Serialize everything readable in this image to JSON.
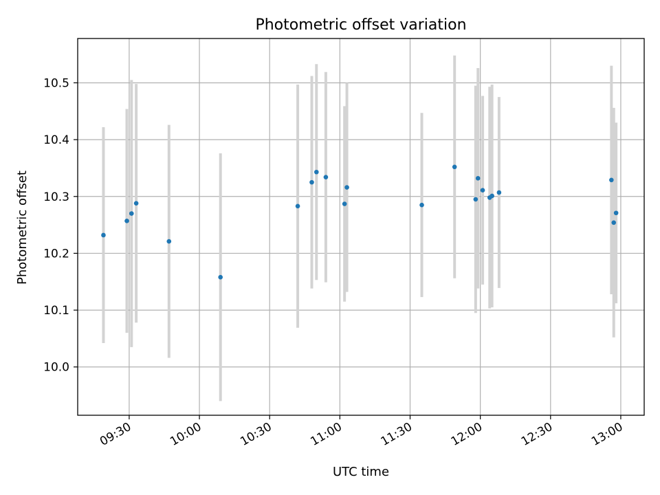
{
  "chart_data": {
    "type": "scatter",
    "title": "Photometric offset variation",
    "xlabel": "UTC time",
    "ylabel": "Photometric offset",
    "x_unit": "time of day (HH:MM)",
    "xlim": [
      "09:08",
      "13:10"
    ],
    "ylim": [
      9.915,
      10.578
    ],
    "x_ticks": [
      "09:30",
      "10:00",
      "10:30",
      "11:00",
      "11:30",
      "12:00",
      "12:30",
      "13:00"
    ],
    "y_ticks": [
      10.0,
      10.1,
      10.2,
      10.3,
      10.4,
      10.5
    ],
    "y_tick_labels": [
      "10.0",
      "10.1",
      "10.2",
      "10.3",
      "10.4",
      "10.5"
    ],
    "grid": true,
    "marker_color": "#1f77b4",
    "errorbar_color": "#d3d3d3",
    "points": [
      {
        "x": "09:19",
        "y": 10.232,
        "err": 0.19
      },
      {
        "x": "09:29",
        "y": 10.257,
        "err": 0.197
      },
      {
        "x": "09:31",
        "y": 10.27,
        "err": 0.235
      },
      {
        "x": "09:33",
        "y": 10.288,
        "err": 0.21
      },
      {
        "x": "09:47",
        "y": 10.221,
        "err": 0.205
      },
      {
        "x": "10:09",
        "y": 10.158,
        "err": 0.218
      },
      {
        "x": "10:42",
        "y": 10.283,
        "err": 0.214
      },
      {
        "x": "10:48",
        "y": 10.325,
        "err": 0.187
      },
      {
        "x": "10:50",
        "y": 10.343,
        "err": 0.19
      },
      {
        "x": "10:54",
        "y": 10.334,
        "err": 0.185
      },
      {
        "x": "11:02",
        "y": 10.287,
        "err": 0.172
      },
      {
        "x": "11:03",
        "y": 10.316,
        "err": 0.184
      },
      {
        "x": "11:35",
        "y": 10.285,
        "err": 0.162
      },
      {
        "x": "11:49",
        "y": 10.352,
        "err": 0.196
      },
      {
        "x": "11:58",
        "y": 10.295,
        "err": 0.2
      },
      {
        "x": "11:59",
        "y": 10.332,
        "err": 0.194
      },
      {
        "x": "12:01",
        "y": 10.311,
        "err": 0.166
      },
      {
        "x": "12:04",
        "y": 10.298,
        "err": 0.195
      },
      {
        "x": "12:05",
        "y": 10.301,
        "err": 0.196
      },
      {
        "x": "12:08",
        "y": 10.307,
        "err": 0.168
      },
      {
        "x": "12:56",
        "y": 10.329,
        "err": 0.201
      },
      {
        "x": "12:57",
        "y": 10.254,
        "err": 0.202
      },
      {
        "x": "12:58",
        "y": 10.271,
        "err": 0.159
      }
    ]
  }
}
